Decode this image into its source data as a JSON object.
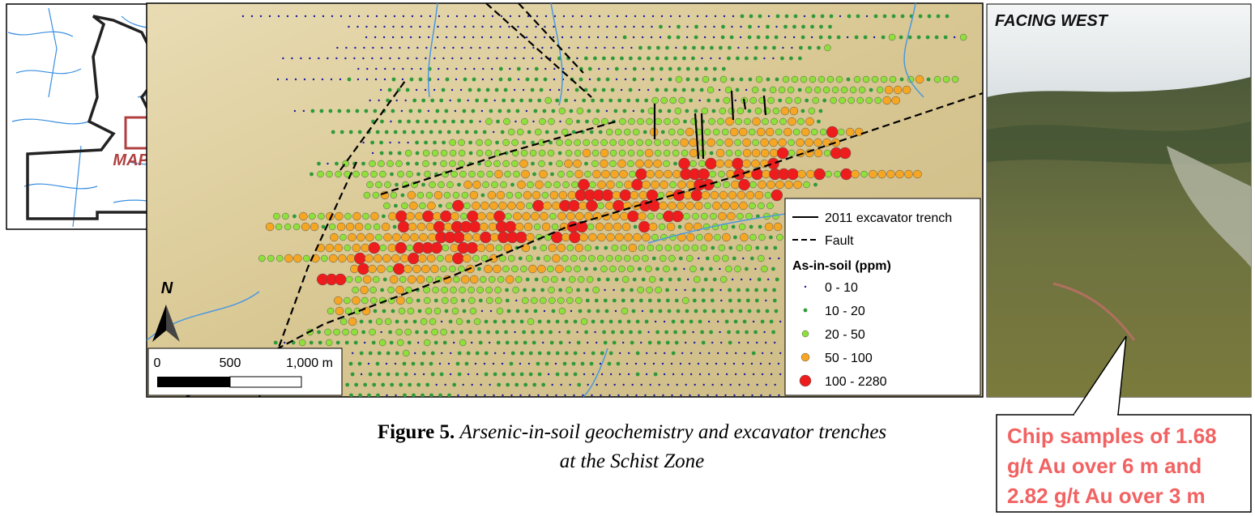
{
  "inset": {
    "label": "MAP AREA"
  },
  "map": {
    "north": "N",
    "scale": {
      "ticks": [
        "0",
        "500",
        "1,000 m"
      ]
    },
    "legend": {
      "trench": "2011 excavator trench",
      "fault": "Fault",
      "title": "As-in-soil (ppm)",
      "classes": [
        {
          "label": "0 - 10",
          "color": "#1a1aa0"
        },
        {
          "label": "10 - 20",
          "color": "#2e9a3a"
        },
        {
          "label": "20 - 50",
          "color": "#8fe03a"
        },
        {
          "label": "50 - 100",
          "color": "#f5a623"
        },
        {
          "label": "100 - 2280",
          "color": "#ee1c1c"
        }
      ]
    }
  },
  "photo": {
    "label": "FACING WEST"
  },
  "callout": {
    "lines": [
      "Chip samples of 1.68",
      "g/t Au over 6 m and",
      "2.82 g/t Au over 3 m"
    ]
  },
  "caption": {
    "label": "Figure 5.",
    "lines": [
      "Arsenic-in-soil geochemistry and excavator trenches",
      "at the Schist Zone"
    ]
  }
}
